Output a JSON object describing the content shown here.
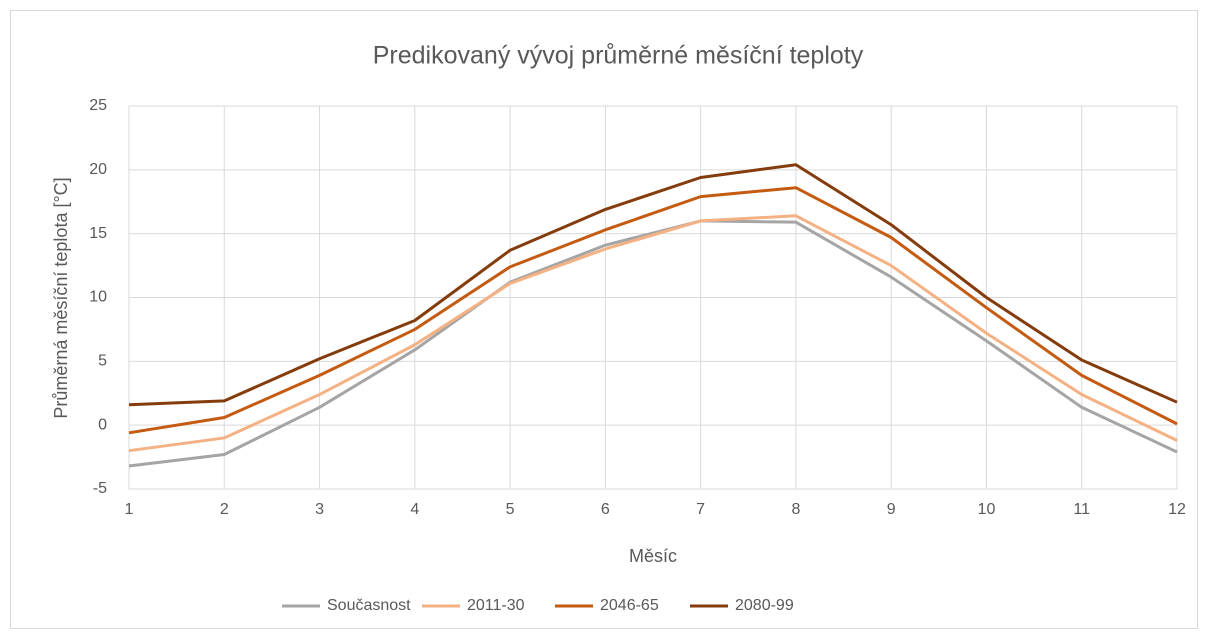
{
  "chart_data": {
    "type": "line",
    "title": "Predikovaný vývoj průměrné měsíční teploty",
    "x_label": "Měsíc",
    "y_label": "Průměrná měsíční teplota [°C]",
    "x": [
      1,
      2,
      3,
      4,
      5,
      6,
      7,
      8,
      9,
      10,
      11,
      12
    ],
    "xlim": [
      1,
      12
    ],
    "xticks": [
      1,
      2,
      3,
      4,
      5,
      6,
      7,
      8,
      9,
      10,
      11,
      12
    ],
    "ylim": [
      -5,
      25
    ],
    "yticks": [
      -5,
      0,
      5,
      10,
      15,
      20,
      25
    ],
    "grid": true,
    "legend": "bottom",
    "series": [
      {
        "name": "Současnost",
        "color": "#a5a5a5",
        "values": [
          -3.2,
          -2.3,
          1.4,
          5.9,
          11.2,
          14.1,
          16.0,
          15.9,
          11.6,
          6.6,
          1.4,
          -2.1
        ]
      },
      {
        "name": "2011-30",
        "color": "#f4b183",
        "values": [
          -2.0,
          -1.0,
          2.4,
          6.3,
          11.1,
          13.8,
          16.0,
          16.4,
          12.5,
          7.2,
          2.4,
          -1.2
        ]
      },
      {
        "name": "2046-65",
        "color": "#c55a11",
        "values": [
          -0.6,
          0.6,
          3.9,
          7.5,
          12.4,
          15.3,
          17.9,
          18.6,
          14.7,
          9.2,
          3.9,
          0.1
        ]
      },
      {
        "name": "2080-99",
        "color": "#843c0c",
        "values": [
          1.6,
          1.9,
          5.2,
          8.2,
          13.7,
          16.9,
          19.4,
          20.4,
          15.7,
          10.0,
          5.1,
          1.8
        ]
      }
    ]
  }
}
